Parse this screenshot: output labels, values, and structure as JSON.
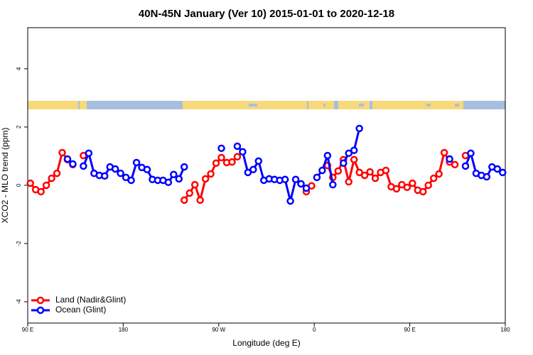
{
  "chart_data": {
    "type": "line",
    "title": "40N-45N January (Ver 10)   2015-01-01 to 2020-12-18",
    "x_label": "Longitude (deg E)",
    "y_label": "XCO2 - MLO trend (ppm)",
    "x": [
      92.5,
      97.5,
      102.5,
      107.5,
      112.5,
      117.5,
      122.5,
      127.5,
      132.5,
      137.5,
      142.5,
      147.5,
      152.5,
      157.5,
      162.5,
      167.5,
      172.5,
      177.5,
      182.5,
      187.5,
      192.5,
      197.5,
      202.5,
      207.5,
      212.5,
      217.5,
      222.5,
      227.5,
      232.5,
      237.5,
      242.5,
      247.5,
      252.5,
      257.5,
      262.5,
      267.5,
      272.5,
      277.5,
      282.5,
      287.5,
      292.5,
      297.5,
      302.5,
      307.5,
      312.5,
      317.5,
      322.5,
      327.5,
      332.5,
      337.5,
      342.5,
      347.5,
      352.5,
      357.5,
      362.5,
      367.5,
      372.5,
      377.5,
      382.5,
      387.5,
      392.5,
      397.5,
      402.5,
      407.5,
      412.5,
      417.5,
      422.5,
      427.5,
      432.5,
      437.5,
      442.5,
      447.5,
      452.5,
      457.5,
      462.5,
      467.5,
      472.5,
      477.5,
      482.5,
      487.5,
      492.5,
      497.5,
      502.5,
      507.5,
      512.5,
      517.5,
      522.5,
      527.5,
      532.5,
      537.5
    ],
    "series": [
      {
        "name": "Land (Nadir&Glint)",
        "color": "#ff0000",
        "values": [
          0.07,
          -0.15,
          -0.22,
          0,
          0.24,
          0.41,
          1.12,
          0.88,
          0.71,
          null,
          1.02,
          null,
          null,
          null,
          null,
          null,
          null,
          null,
          null,
          null,
          null,
          null,
          null,
          null,
          null,
          null,
          null,
          null,
          null,
          -0.51,
          -0.27,
          0.02,
          -0.51,
          0.22,
          0.39,
          0.76,
          0.95,
          0.78,
          0.8,
          0.98,
          null,
          null,
          null,
          null,
          null,
          null,
          null,
          null,
          null,
          null,
          null,
          null,
          -0.22,
          -0.02,
          null,
          null,
          0.68,
          0.27,
          0.49,
          0.88,
          0.12,
          0.88,
          0.44,
          0.34,
          0.46,
          0.24,
          0.44,
          0.51,
          -0.05,
          -0.12,
          0.02,
          -0.07,
          0.07,
          -0.17,
          -0.22,
          0,
          0.24,
          0.39,
          1.12,
          0.8,
          0.71,
          null,
          1.02,
          null,
          null,
          null,
          null,
          null,
          null,
          null
        ]
      },
      {
        "name": "Ocean (Glint)",
        "color": "#0000ff",
        "values": [
          null,
          null,
          null,
          null,
          null,
          null,
          null,
          0.9,
          0.73,
          null,
          0.66,
          1.1,
          0.41,
          0.34,
          0.32,
          0.63,
          0.56,
          0.41,
          0.27,
          0.17,
          0.78,
          0.61,
          0.54,
          0.2,
          0.17,
          0.17,
          0.1,
          0.37,
          0.22,
          0.63,
          null,
          null,
          null,
          null,
          null,
          null,
          1.27,
          null,
          null,
          1.34,
          1.15,
          0.44,
          0.54,
          0.83,
          0.17,
          0.22,
          0.2,
          0.17,
          0.2,
          -0.54,
          0.2,
          0.05,
          -0.1,
          null,
          0.27,
          0.51,
          1.02,
          0.02,
          null,
          0.76,
          1.1,
          1.2,
          1.95,
          null,
          null,
          null,
          null,
          null,
          null,
          null,
          null,
          null,
          null,
          null,
          null,
          null,
          null,
          null,
          null,
          0.9,
          null,
          null,
          0.66,
          1.1,
          0.41,
          0.34,
          0.29,
          0.63,
          0.56,
          0.44
        ]
      }
    ],
    "xlim": [
      90,
      540
    ],
    "xticks": [
      {
        "value": 90,
        "label": "90 E"
      },
      {
        "value": 180,
        "label": "180"
      },
      {
        "value": 270,
        "label": "90 W"
      },
      {
        "value": 360,
        "label": "0"
      },
      {
        "value": 450,
        "label": "90 E"
      },
      {
        "value": 540,
        "label": "180"
      }
    ],
    "ylim": [
      -4.73,
      5.41
    ],
    "yticks": [
      -4,
      -2,
      0,
      2,
      4
    ],
    "legend": "bottom-left"
  }
}
